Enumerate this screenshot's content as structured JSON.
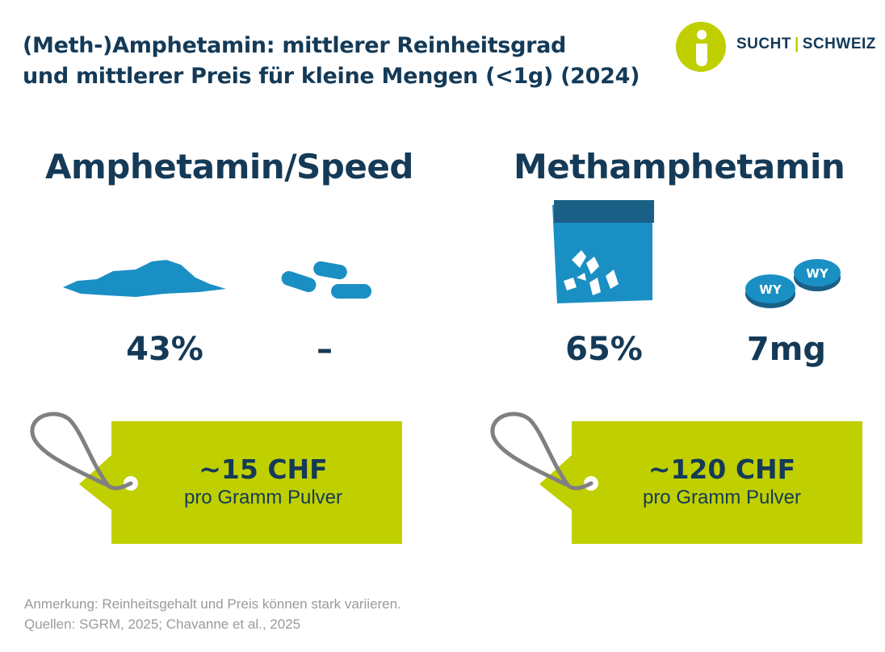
{
  "title": {
    "line1": "(Meth-)Amphetamin: mittlerer Reinheitsgrad",
    "line2": "und mittlerer Preis für kleine Mengen (<1g) (2024)"
  },
  "logo": {
    "part1": "SUCHT",
    "separator": "|",
    "part2": "SCHWEIZ"
  },
  "sections": [
    {
      "heading": "Amphetamin/Speed",
      "powder_value": "43%",
      "pill_value": "–",
      "price": "~15 CHF",
      "price_unit": "pro Gramm Pulver"
    },
    {
      "heading": "Methamphetamin",
      "crystal_value": "65%",
      "pill_value": "7mg",
      "pill_imprint": "WY",
      "price": "~120 CHF",
      "price_unit": "pro Gramm Pulver"
    }
  ],
  "footer": {
    "note": "Anmerkung: Reinheitsgehalt und Preis können stark variieren.",
    "sources": "Quellen: SGRM, 2025; Chavanne et al., 2025"
  },
  "colors": {
    "navy": "#143a57",
    "blue": "#1a8fc4",
    "lime": "#c0cf00",
    "string": "#808080",
    "note": "#9a9a9a"
  },
  "icons": [
    "logo-person-icon",
    "powder-icon",
    "capsule-icon",
    "crystal-bag-icon",
    "wy-pill-icon",
    "price-tag-icon"
  ]
}
